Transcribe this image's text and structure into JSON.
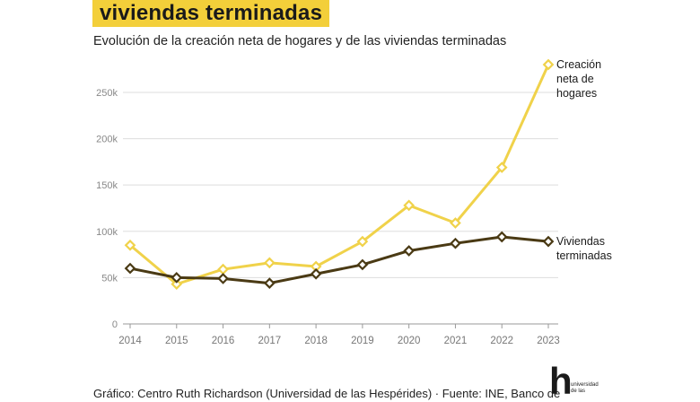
{
  "header": {
    "title": "viviendas terminadas",
    "subtitle": "Evolución de la creación neta de hogares y de las viviendas terminadas"
  },
  "footer": {
    "credit": "Gráfico: Centro Ruth Richardson (Universidad de las Hespérides) · Fuente: INE, Banco de"
  },
  "logo": {
    "glyph": "h",
    "line1": "universidad",
    "line2": "de las"
  },
  "chart_data": {
    "type": "line",
    "categories": [
      "2014",
      "2015",
      "2016",
      "2017",
      "2018",
      "2019",
      "2020",
      "2021",
      "2022",
      "2023"
    ],
    "ylim": [
      0,
      280000
    ],
    "yticks": [
      0,
      50000,
      100000,
      150000,
      200000,
      250000
    ],
    "ytick_labels": [
      "0",
      "50k",
      "100k",
      "150k",
      "200k",
      "250k"
    ],
    "colors": {
      "hogares": "#f0d24a",
      "viviendas": "#4a3a14",
      "grid": "#dddddd",
      "axis": "#999999"
    },
    "series": [
      {
        "key": "hogares",
        "name": "Creación neta de hogares",
        "label_lines": [
          "Creación",
          "neta de",
          "hogares"
        ],
        "values": [
          85000,
          43000,
          59000,
          66000,
          62000,
          89000,
          128000,
          109000,
          169000,
          280000
        ]
      },
      {
        "key": "viviendas",
        "name": "Viviendas terminadas",
        "label_lines": [
          "Viviendas",
          "terminadas"
        ],
        "values": [
          60000,
          50000,
          49000,
          44000,
          54000,
          64000,
          79000,
          87000,
          94000,
          89000
        ]
      }
    ]
  }
}
